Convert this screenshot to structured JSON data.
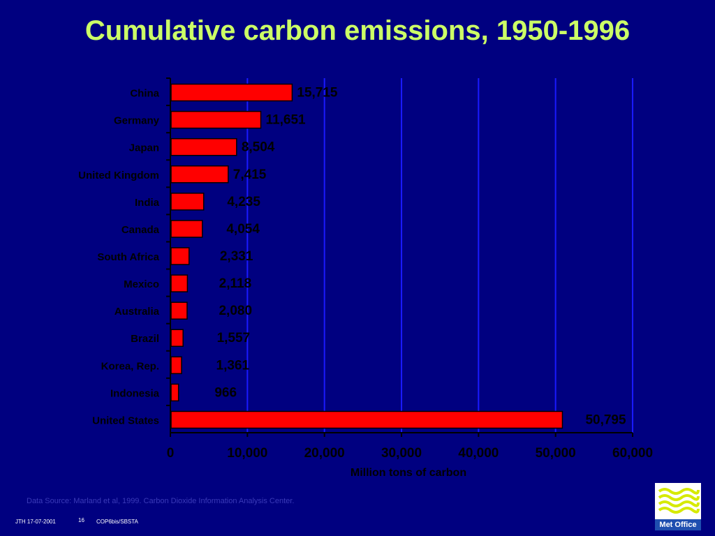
{
  "slide": {
    "title": "Cumulative carbon emissions, 1950-1996",
    "source": "Data Source: Marland et al, 1999. Carbon Dioxide Information Analysis Center.",
    "footer_author_date": "JTH 17-07-2001",
    "footer_page": "16",
    "footer_event": "COP6bis/SBSTA",
    "logo_label": "Met Office"
  },
  "colors": {
    "background": "#000080",
    "title": "#ccff66",
    "bar": "#ff0000",
    "text": "#000000",
    "gridline": "#1a1aff"
  },
  "chart_data": {
    "type": "bar",
    "orientation": "horizontal",
    "title": "Cumulative carbon emissions, 1950-1996",
    "xlabel": "Million tons of carbon",
    "ylabel": "",
    "xlim": [
      0,
      60000
    ],
    "x_ticks": [
      "0",
      "10,000",
      "20,000",
      "30,000",
      "40,000",
      "50,000",
      "60,000"
    ],
    "grid": "vertical",
    "categories": [
      "China",
      "Germany",
      "Japan",
      "United Kingdom",
      "India",
      "Canada",
      "South Africa",
      "Mexico",
      "Australia",
      "Brazil",
      "Korea, Rep.",
      "Indonesia",
      "United States"
    ],
    "values": [
      15715,
      11651,
      8504,
      7415,
      4235,
      4054,
      2331,
      2118,
      2080,
      1557,
      1361,
      966,
      50795
    ],
    "data_labels": [
      "15,715",
      "11,651",
      "8,504",
      "7,415",
      "4,235",
      "4,054",
      "2,331",
      "2,118",
      "2,080",
      "1,557",
      "1,361",
      "966",
      "50,795"
    ]
  }
}
